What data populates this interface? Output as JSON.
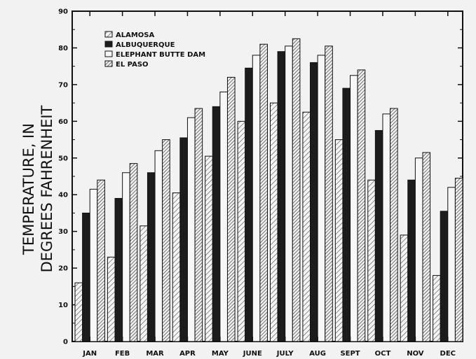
{
  "chart_data": {
    "type": "bar",
    "title": "",
    "xlabel": "",
    "ylabel_lines": [
      "TEMPERATURE, IN",
      "DEGREES FAHRENHEIT"
    ],
    "ylim": [
      0,
      90
    ],
    "yticks": [
      0,
      10,
      20,
      30,
      40,
      50,
      60,
      70,
      80,
      90
    ],
    "categories": [
      "JAN",
      "FEB",
      "MAR",
      "APR",
      "MAY",
      "JUNE",
      "JULY",
      "AUG",
      "SEPT",
      "OCT",
      "NOV",
      "DEC"
    ],
    "legend_position": "top-left",
    "grid": false,
    "series": [
      {
        "name": "ALAMOSA",
        "fill": "hatch-light",
        "values": [
          16,
          23,
          31.5,
          40.5,
          50.5,
          60,
          65,
          62.5,
          55,
          44,
          29,
          18
        ]
      },
      {
        "name": "ALBUQUERQUE",
        "fill": "solid-dark",
        "values": [
          35,
          39,
          46,
          55.5,
          64,
          74.5,
          79,
          76,
          69,
          57.5,
          44,
          35.5
        ]
      },
      {
        "name": "ELEPHANT BUTTE DAM",
        "fill": "open",
        "values": [
          41.5,
          46,
          52,
          61,
          68,
          78,
          80.5,
          78,
          72.5,
          62,
          50,
          42
        ]
      },
      {
        "name": "EL PASO",
        "fill": "hatch-dense",
        "values": [
          44,
          48.5,
          55,
          63.5,
          72,
          81,
          82.5,
          80.5,
          74,
          63.5,
          51.5,
          44.5
        ]
      }
    ]
  }
}
